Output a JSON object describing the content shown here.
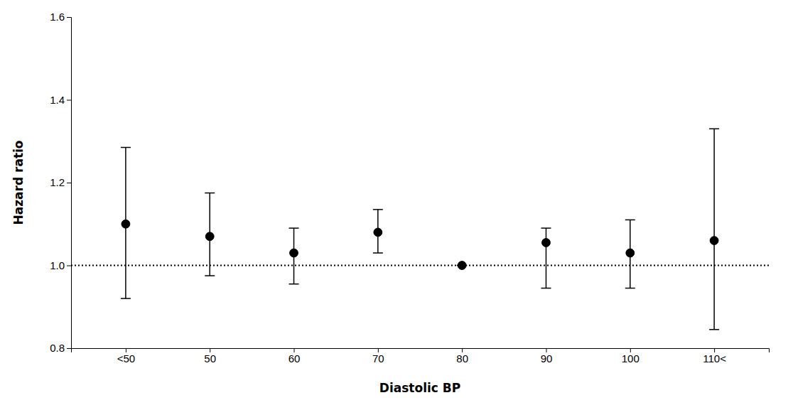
{
  "chart_data": {
    "type": "errorbar",
    "categories": [
      "<50",
      "50",
      "60",
      "70",
      "80",
      "90",
      "100",
      "110<"
    ],
    "values": [
      1.1,
      1.07,
      1.03,
      1.08,
      1.0,
      1.055,
      1.03,
      1.06
    ],
    "ci_lower": [
      0.92,
      0.975,
      0.955,
      1.03,
      1.0,
      0.945,
      0.945,
      0.845
    ],
    "ci_upper": [
      1.285,
      1.175,
      1.09,
      1.135,
      1.0,
      1.09,
      1.11,
      1.33
    ],
    "reference_line": 1.0,
    "xlabel": "Diastolic BP",
    "ylabel": "Hazard ratio",
    "ylim": [
      0.8,
      1.6
    ],
    "yticks": [
      0.8,
      {
        "value": 1.0,
        "label": "1.0"
      },
      1.2,
      1.4,
      1.6
    ],
    "color": "#000000",
    "marker": "circle",
    "grid": false
  }
}
